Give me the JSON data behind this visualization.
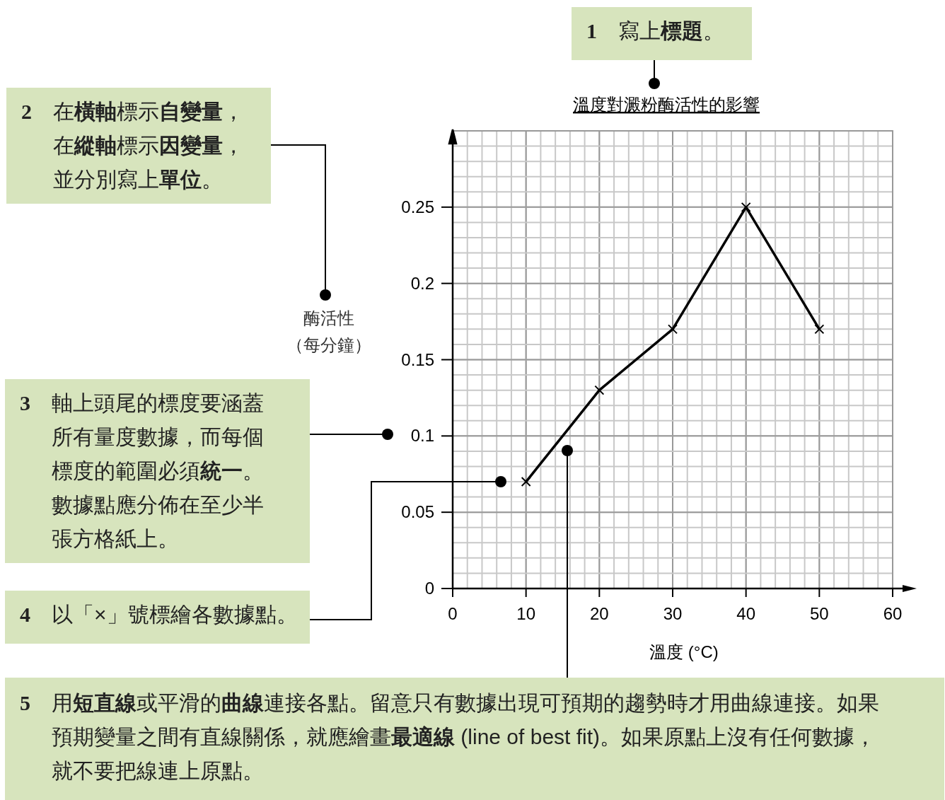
{
  "chart_data": {
    "type": "line",
    "title": "溫度對澱粉酶活性的影響",
    "xlabel": "溫度 (°C)",
    "ylabel": "酶活性（每分鐘）",
    "x": [
      10,
      20,
      30,
      40,
      50
    ],
    "values": [
      0.07,
      0.13,
      0.17,
      0.25,
      0.17
    ],
    "color": "#000000",
    "marker": "cross",
    "line_style": "solid",
    "grid": true,
    "xlim": [
      0,
      60
    ],
    "ylim": [
      0,
      0.3
    ],
    "xticks": [
      0,
      10,
      20,
      30,
      40,
      50,
      60
    ],
    "yticks": [
      0,
      0.05,
      0.1,
      0.15,
      0.2,
      0.25
    ],
    "annotations": [
      "1 寫上**標題**。",
      "2 在**橫軸**標示**自變量**，在**縱軸**標示**因變量**，並分別寫上**單位**。",
      "3 軸上頭尾的標度要涵蓋所有量度數據，而每個標度的範圍必須**統一**。數據點應分佈在至少半張方格紙上。",
      "4 以「×」號標繪各數據點。",
      "5 用**短直線**或平滑的**曲線**連接各點。留意只有數據出現可預期的趨勢時才用曲線連接。如果預期變量之間有直線關係，就應繪畫**最適線**  (line of best fit)。如果原點上沒有任何數據，就不要把線連上原點。"
    ]
  }
}
